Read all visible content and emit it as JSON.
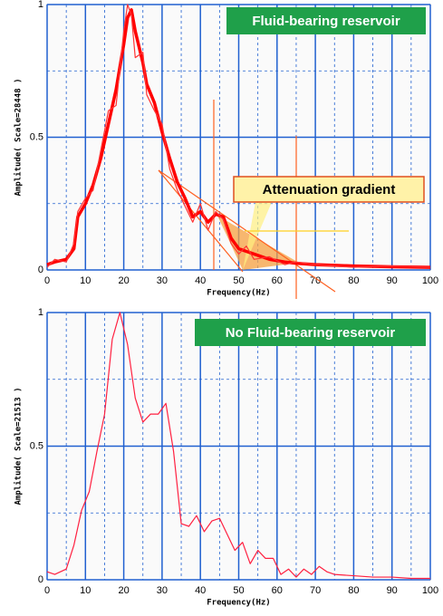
{
  "chart_data": [
    {
      "type": "line",
      "annotations": [
        "Fluid-bearing reservoir",
        "Attenuation gradient"
      ],
      "xlabel": "Frequency(Hz)",
      "ylabel": "Amplitude( Scale=28448 )",
      "xlim": [
        0,
        100
      ],
      "ylim": [
        0,
        1
      ],
      "xticks": [
        0,
        10,
        20,
        30,
        40,
        50,
        60,
        70,
        80,
        90,
        100
      ],
      "yticks": [
        0,
        0.5,
        1
      ],
      "grid": true,
      "x": [
        0,
        2,
        5,
        7,
        8,
        10,
        12,
        14,
        16,
        18,
        20,
        21,
        22,
        23,
        25,
        26,
        28,
        30,
        32,
        34,
        36,
        38,
        40,
        42,
        44,
        46,
        48,
        50,
        52,
        54,
        58,
        62,
        65,
        70,
        80,
        90,
        100
      ],
      "series": [
        {
          "color": "#ff0000",
          "values": [
            0.02,
            0.03,
            0.04,
            0.08,
            0.2,
            0.25,
            0.32,
            0.42,
            0.55,
            0.68,
            0.85,
            0.95,
            0.98,
            0.9,
            0.78,
            0.7,
            0.63,
            0.52,
            0.42,
            0.33,
            0.27,
            0.2,
            0.22,
            0.18,
            0.21,
            0.2,
            0.12,
            0.08,
            0.07,
            0.06,
            0.04,
            0.03,
            0.025,
            0.02,
            0.015,
            0.012,
            0.01
          ]
        },
        {
          "color": "#ff3333",
          "values": [
            0.01,
            0.04,
            0.03,
            0.1,
            0.22,
            0.27,
            0.3,
            0.45,
            0.6,
            0.62,
            0.9,
            1.0,
            0.96,
            0.8,
            0.82,
            0.66,
            0.6,
            0.55,
            0.38,
            0.3,
            0.24,
            0.18,
            0.25,
            0.15,
            0.22,
            0.19,
            0.1,
            0.06,
            0.09,
            0.04,
            0.05,
            0.02,
            0.03,
            0.02,
            0.01,
            0.015,
            0.01
          ]
        }
      ]
    },
    {
      "type": "line",
      "annotations": [
        "No Fluid-bearing reservoir"
      ],
      "xlabel": "Frequency(Hz)",
      "ylabel": "Amplitude( Scale=21513 )",
      "xlim": [
        0,
        100
      ],
      "ylim": [
        0,
        1
      ],
      "xticks": [
        0,
        10,
        20,
        30,
        40,
        50,
        60,
        70,
        80,
        90,
        100
      ],
      "yticks": [
        0,
        0.5,
        1
      ],
      "grid": true,
      "x": [
        0,
        2,
        5,
        7,
        9,
        11,
        13,
        15,
        17,
        19,
        21,
        23,
        25,
        27,
        29,
        31,
        33,
        35,
        37,
        39,
        41,
        43,
        45,
        47,
        49,
        51,
        53,
        55,
        57,
        59,
        61,
        63,
        65,
        67,
        69,
        71,
        73,
        75,
        80,
        85,
        90,
        95,
        100
      ],
      "series": [
        {
          "color": "#ff2040",
          "values": [
            0.03,
            0.02,
            0.04,
            0.13,
            0.26,
            0.33,
            0.48,
            0.62,
            0.9,
            1.0,
            0.88,
            0.68,
            0.59,
            0.62,
            0.62,
            0.66,
            0.48,
            0.21,
            0.2,
            0.24,
            0.18,
            0.22,
            0.23,
            0.17,
            0.11,
            0.14,
            0.06,
            0.11,
            0.08,
            0.08,
            0.02,
            0.04,
            0.01,
            0.04,
            0.02,
            0.05,
            0.03,
            0.02,
            0.015,
            0.01,
            0.01,
            0.005,
            0.005
          ]
        }
      ]
    }
  ]
}
